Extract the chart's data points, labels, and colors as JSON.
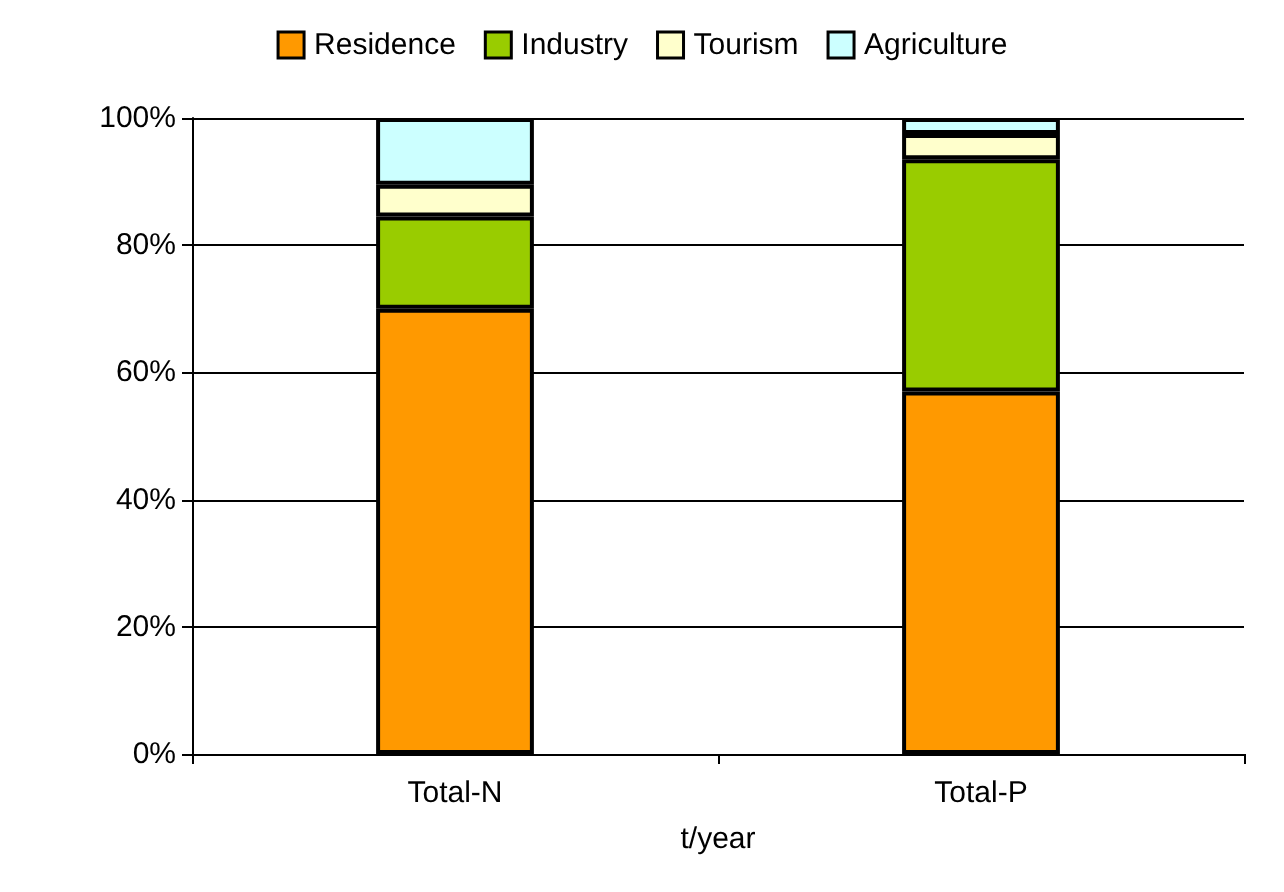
{
  "chart_data": {
    "type": "bar",
    "stacked": true,
    "categories": [
      "Total-N",
      "Total-P"
    ],
    "xlabel": "t/year",
    "series": [
      {
        "name": "Residence",
        "color": "#ff9900",
        "values": [
          70,
          57
        ]
      },
      {
        "name": "Industry",
        "color": "#99cc00",
        "values": [
          14.5,
          36.5
        ]
      },
      {
        "name": "Tourism",
        "color": "#ffffcc",
        "values": [
          5,
          4
        ]
      },
      {
        "name": "Agriculture",
        "color": "#ccffff",
        "values": [
          10.5,
          2.5
        ]
      }
    ],
    "ylim": [
      0,
      100
    ],
    "yticks": [
      {
        "value": 0,
        "label": "0%"
      },
      {
        "value": 20,
        "label": "20%"
      },
      {
        "value": 40,
        "label": "40%"
      },
      {
        "value": 60,
        "label": "60%"
      },
      {
        "value": 80,
        "label": "80%"
      },
      {
        "value": 100,
        "label": "100%"
      }
    ],
    "grid": "y",
    "legend": "top"
  }
}
